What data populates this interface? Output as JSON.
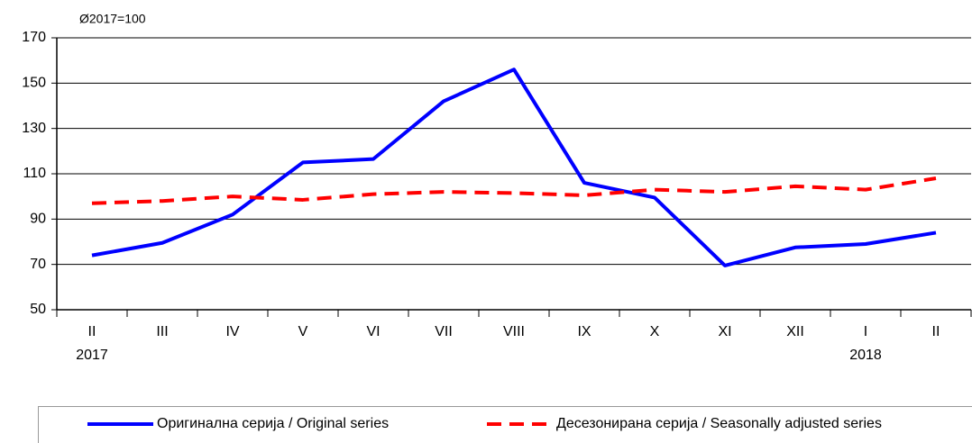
{
  "chart_data": {
    "type": "line",
    "subtitle": "Ø2017=100",
    "categories": [
      "II",
      "III",
      "IV",
      "V",
      "VI",
      "VII",
      "VIII",
      "IX",
      "X",
      "XI",
      "XII",
      "I",
      "II"
    ],
    "years": [
      "2017",
      null,
      null,
      null,
      null,
      null,
      null,
      null,
      null,
      null,
      null,
      "2018",
      null
    ],
    "series": [
      {
        "name": "Оригинална серија / Original series",
        "color": "#0000ff",
        "dashed": false,
        "values": [
          74,
          79.5,
          92,
          115,
          116.5,
          142,
          156,
          106,
          99.5,
          69.5,
          77.5,
          79,
          84
        ]
      },
      {
        "name": "Десезонирана серија / Seasonally adjusted series",
        "color": "#ff0000",
        "dashed": true,
        "values": [
          97,
          98,
          100,
          98.5,
          101,
          102,
          101.5,
          100.5,
          103,
          102,
          104.5,
          103,
          108
        ]
      }
    ],
    "ylim": [
      50,
      170
    ],
    "yticks": [
      50,
      70,
      90,
      110,
      130,
      150,
      170
    ],
    "grid": true
  }
}
